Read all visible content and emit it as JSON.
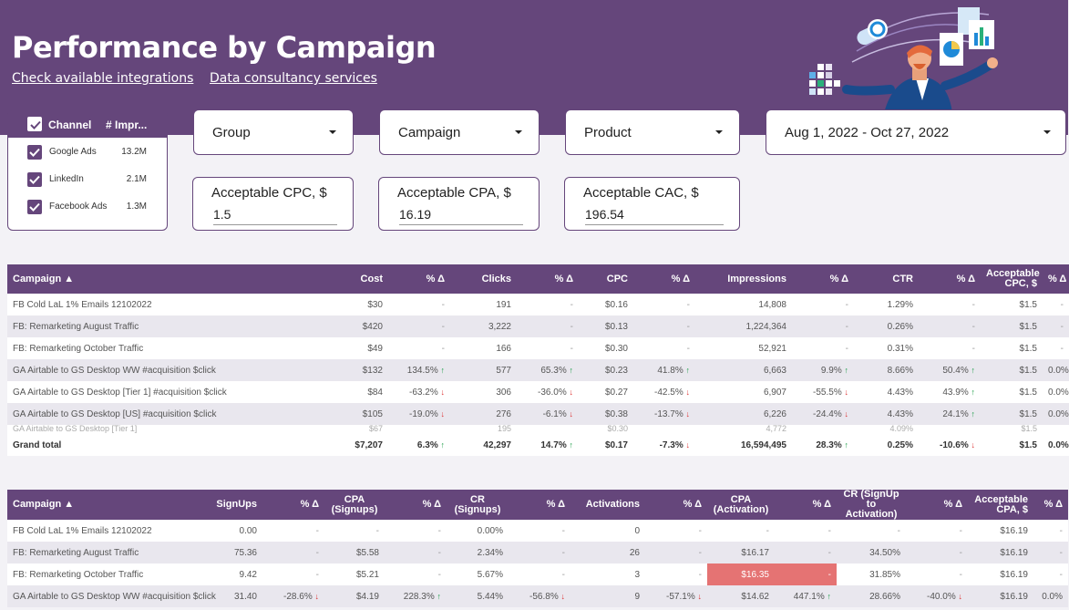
{
  "header": {
    "title": "Performance by Campaign",
    "link1": "Check available integrations",
    "link2": "Data consultancy services"
  },
  "channels": {
    "col1": "Channel",
    "col2": "# Impr...",
    "rows": [
      {
        "name": "Google Ads",
        "value": "13.2M"
      },
      {
        "name": "LinkedIn",
        "value": "2.1M"
      },
      {
        "name": "Facebook Ads",
        "value": "1.3M"
      }
    ]
  },
  "filters": {
    "group": "Group",
    "campaign": "Campaign",
    "product": "Product",
    "daterange": "Aug 1, 2022 - Oct 27, 2022"
  },
  "inputs": {
    "cpc_label": "Acceptable CPC, $",
    "cpc_value": "1.5",
    "cpa_label": "Acceptable CPA, $",
    "cpa_value": "16.19",
    "cac_label": "Acceptable CAC, $",
    "cac_value": "196.54"
  },
  "table1": {
    "headers": [
      "Campaign ▲",
      "Cost",
      "% Δ",
      "Clicks",
      "% Δ",
      "CPC",
      "% Δ",
      "Impressions",
      "% Δ",
      "CTR",
      "% Δ",
      "Acceptable CPC, $",
      "% Δ"
    ],
    "rows": [
      [
        "FB Cold LaL 1% Emails 12102022",
        "$30",
        "-",
        "191",
        "-",
        "$0.16",
        "-",
        "14,808",
        "-",
        "1.29%",
        "-",
        "$1.5",
        "-"
      ],
      [
        "FB: Remarketing August Traffic",
        "$420",
        "-",
        "3,222",
        "-",
        "$0.13",
        "-",
        "1,224,364",
        "-",
        "0.26%",
        "-",
        "$1.5",
        "-"
      ],
      [
        "FB: Remarketing October Traffic",
        "$49",
        "-",
        "166",
        "-",
        "$0.30",
        "-",
        "52,921",
        "-",
        "0.31%",
        "-",
        "$1.5",
        "-"
      ],
      [
        "GA Airtable to GS Desktop WW #acquisition $click",
        "$132",
        "134.5% ↑",
        "577",
        "65.3% ↑",
        "$0.23",
        "41.8% ↑",
        "6,663",
        "9.9% ↑",
        "8.66%",
        "50.4% ↑",
        "$1.5",
        "0.0%"
      ],
      [
        "GA Airtable to GS Desktop [Tier 1] #acquisition $click",
        "$84",
        "-63.2% ↓",
        "306",
        "-36.0% ↓",
        "$0.27",
        "-42.5% ↓",
        "6,907",
        "-55.5% ↓",
        "4.43%",
        "43.9% ↑",
        "$1.5",
        "0.0%"
      ],
      [
        "GA Airtable to GS Desktop [US] #acquisition $click",
        "$105",
        "-19.0% ↓",
        "276",
        "-6.1% ↓",
        "$0.38",
        "-13.7% ↓",
        "6,226",
        "-24.4% ↓",
        "4.43%",
        "24.1% ↑",
        "$1.5",
        "0.0%"
      ]
    ],
    "partial": [
      "GA Airtable to GS Desktop [Tier 1]",
      "$67",
      "",
      "195",
      "",
      "$0.30",
      "",
      "4,772",
      "",
      "4.09%",
      "",
      "$1.5",
      ""
    ],
    "total": [
      "Grand total",
      "$7,207",
      "6.3% ↑",
      "42,297",
      "14.7% ↑",
      "$0.17",
      "-7.3% ↓",
      "16,594,495",
      "28.3% ↑",
      "0.25%",
      "-10.6% ↓",
      "$1.5",
      "0.0%"
    ]
  },
  "table2": {
    "headers": [
      "Campaign ▲",
      "SignUps",
      "% Δ",
      "CPA (Signups)",
      "% Δ",
      "CR (Signups)",
      "% Δ",
      "Activations",
      "% Δ",
      "CPA (Activation)",
      "% Δ",
      "CR (SignUp to Activation)",
      "% Δ",
      "Acceptable CPA, $",
      "% Δ"
    ],
    "rows": [
      [
        "FB Cold LaL 1% Emails 12102022",
        "0.00",
        "-",
        "-",
        "-",
        "0.00%",
        "-",
        "0",
        "-",
        "-",
        "-",
        "-",
        "-",
        "$16.19",
        "-"
      ],
      [
        "FB: Remarketing August Traffic",
        "75.36",
        "-",
        "$5.58",
        "-",
        "2.34%",
        "-",
        "26",
        "-",
        "$16.17",
        "-",
        "34.50%",
        "-",
        "$16.19",
        "-"
      ],
      [
        "FB: Remarketing October Traffic",
        "9.42",
        "-",
        "$5.21",
        "-",
        "5.67%",
        "-",
        "3",
        "-",
        "$16.35",
        "-",
        "31.85%",
        "-",
        "$16.19",
        "-"
      ],
      [
        "GA Airtable to GS Desktop WW #acquisition $click",
        "31.40",
        "-28.6% ↓",
        "$4.19",
        "228.3% ↑",
        "5.44%",
        "-56.8% ↓",
        "9",
        "-57.1% ↓",
        "$14.62",
        "447.1% ↑",
        "28.66%",
        "-40.0% ↓",
        "$16.19",
        "0.0%"
      ]
    ]
  },
  "colors": {
    "accent": "#65467b",
    "up": "#1e9e4a",
    "down": "#dd3333",
    "highlight": "#e57373"
  }
}
